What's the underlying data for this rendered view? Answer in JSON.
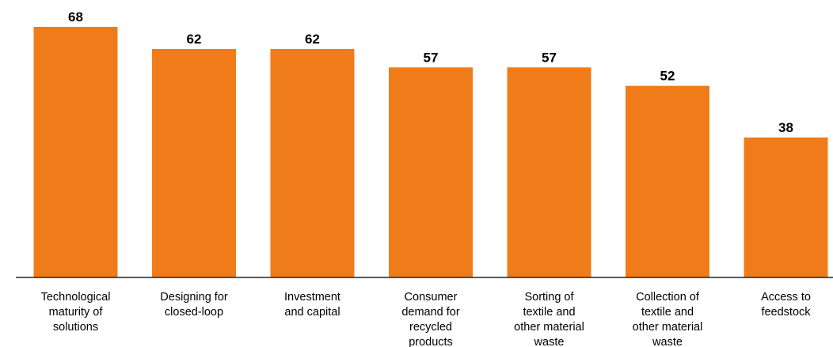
{
  "chart_data": {
    "type": "bar",
    "categories": [
      [
        "Technological",
        "maturity of",
        "solutions"
      ],
      [
        "Designing for",
        "closed-loop"
      ],
      [
        "Investment",
        "and capital"
      ],
      [
        "Consumer",
        "demand for",
        "recycled",
        "products"
      ],
      [
        "Sorting of",
        "textile and",
        "other material",
        "waste"
      ],
      [
        "Collection of",
        "textile and",
        "other material",
        "waste"
      ],
      [
        "Access to",
        "feedstock"
      ]
    ],
    "values": [
      68,
      62,
      62,
      57,
      57,
      52,
      38
    ],
    "title": "",
    "xlabel": "",
    "ylabel": "",
    "ylim": [
      0,
      68
    ],
    "grid": false,
    "legend": "none",
    "bar_color": "#F07C19",
    "axis_color": "#222222"
  }
}
